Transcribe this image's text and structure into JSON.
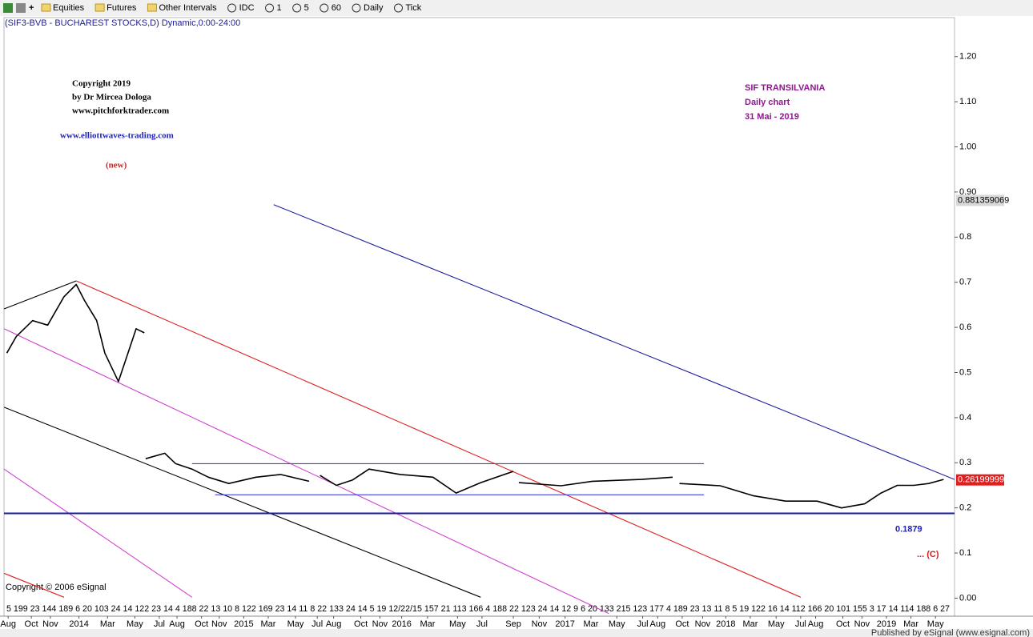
{
  "toolbar": {
    "items": [
      "Equities",
      "Futures",
      "Other Intervals",
      "IDC",
      "1",
      "5",
      "60",
      "Daily",
      "Tick"
    ]
  },
  "chart_data": {
    "type": "line",
    "header": "(SIF3-BVB - BUCHAREST STOCKS,D) Dynamic,0:00-24:00",
    "annotations": {
      "copyright": [
        "Copyright 2019",
        "by Dr Mircea Dologa",
        "www.pitchforktrader.com"
      ],
      "website": "www.elliottwaves-trading.com",
      "new": "(new)",
      "title": [
        "SIF TRANSILVANIA",
        "Daily chart",
        "31 Mai  -  2019"
      ],
      "wave": "... (C)",
      "esignal_copyright": "Copyright © 2006 eSignal",
      "footer": "Published by eSignal (www.esignal.com)"
    },
    "x": [
      0.2,
      0.9,
      2.1,
      3.2,
      4.4,
      5.3,
      5.9,
      6.8,
      7.4,
      8.4,
      9.1,
      9.7,
      10.3,
      10.35,
      10.4,
      11.8,
      12.6,
      13.8,
      15.0,
      16.5,
      18.5,
      20.3,
      22.4,
      22.8,
      23.2,
      24.4,
      25.6,
      26.8,
      29.1,
      31.5,
      33.2,
      35.0,
      37.4,
      37.6,
      37.8,
      40.9,
      43.2,
      46.8,
      49.1,
      49.3,
      49.6,
      52.6,
      55.0,
      57.4,
      59.7,
      61.5,
      63.2,
      64.4,
      65.6,
      66.8,
      67.9,
      69.0
    ],
    "series": [
      {
        "name": "SIF3-BVB",
        "color": "#000000",
        "values": [
          0.543,
          0.58,
          0.615,
          0.605,
          0.668,
          0.695,
          0.66,
          0.615,
          0.543,
          0.48,
          0.543,
          0.597,
          0.588,
          null,
          0.309,
          0.321,
          0.298,
          0.286,
          0.268,
          0.254,
          0.268,
          0.274,
          0.259,
          null,
          0.272,
          0.25,
          0.262,
          0.286,
          0.274,
          0.268,
          0.233,
          0.256,
          0.281,
          null,
          0.256,
          0.249,
          0.259,
          0.263,
          0.268,
          null,
          0.254,
          0.249,
          0.227,
          0.215,
          0.215,
          0.2,
          0.209,
          0.233,
          0.25,
          0.25,
          0.254,
          0.263
        ]
      }
    ],
    "trendlines": [
      {
        "color": "#000000",
        "x": [
          0,
          5.3
        ],
        "values": [
          0.641,
          0.703
        ]
      },
      {
        "color": "#e02020",
        "x": [
          5.3,
          58.5
        ],
        "values": [
          0.703,
          0.002
        ]
      },
      {
        "color": "#d040d0",
        "x": [
          0,
          44.4
        ],
        "values": [
          0.597,
          -0.034
        ]
      },
      {
        "color": "#2020a0",
        "x": [
          19.8,
          69.8
        ],
        "values": [
          0.872,
          0.263
        ]
      },
      {
        "color": "#000000",
        "x": [
          0,
          35.0
        ],
        "values": [
          0.423,
          0.002
        ]
      },
      {
        "color": "#d040d0",
        "x": [
          0,
          13.8
        ],
        "values": [
          0.286,
          0.002
        ]
      },
      {
        "color": "#e02020",
        "x": [
          0,
          4.4
        ],
        "values": [
          0.055,
          0.002
        ]
      },
      {
        "color": "#4040e0",
        "x": [
          13.8,
          51.4
        ],
        "values": [
          0.298,
          0.298
        ]
      },
      {
        "color": "#4040e0",
        "x": [
          15.5,
          51.4
        ],
        "values": [
          0.229,
          0.229
        ]
      }
    ],
    "support": {
      "value": 0.1879,
      "color": "#1a1aa0"
    },
    "price_labels": [
      {
        "value": 0.881359069,
        "color": "#d8d8d8"
      },
      {
        "value": 0.26199999,
        "color": "#e02020"
      }
    ],
    "xlim": [
      -0.3,
      69.8
    ],
    "ylim": [
      -0.04,
      1.29
    ],
    "yticks": [
      {
        "value": 1.2,
        "label": "1.20"
      },
      {
        "value": 1.1,
        "label": "1.10"
      },
      {
        "value": 1.0,
        "label": "1.00"
      },
      {
        "value": 0.9,
        "label": "0.90"
      },
      0.8,
      0.7,
      0.6,
      0.5,
      0.4,
      0.3,
      0.2,
      0.1,
      {
        "value": 0.0,
        "label": "0.00"
      }
    ],
    "x_day_labels": "5 199 23 144 189 6 20 103   24 14 122   23 14 4 188 22 13 10 8   122 169 23 14 11 8 22 133   24 14 5 19 12/22/15   157 21 113 166   4 188 22 123   24 14 12 9   6 20 133   215 123 177   4 189 23 13 11 8   5 19 122 16 14 112 166 20 101 155   3 17 14 114 188   6 27",
    "xticks": [
      {
        "value": 0.3,
        "label": "Aug"
      },
      {
        "value": 2.0,
        "label": "Oct"
      },
      {
        "value": 3.4,
        "label": "Nov"
      },
      {
        "value": 5.5,
        "label": "2014"
      },
      {
        "value": 7.6,
        "label": "Mar"
      },
      {
        "value": 9.6,
        "label": "May"
      },
      {
        "value": 11.4,
        "label": "Jul"
      },
      {
        "value": 12.7,
        "label": "Aug"
      },
      {
        "value": 14.5,
        "label": "Oct"
      },
      {
        "value": 15.8,
        "label": "Nov"
      },
      {
        "value": 17.6,
        "label": "2015"
      },
      {
        "value": 19.4,
        "label": "Mar"
      },
      {
        "value": 21.4,
        "label": "May"
      },
      {
        "value": 23.0,
        "label": "Jul"
      },
      {
        "value": 24.2,
        "label": "Aug"
      },
      {
        "value": 26.2,
        "label": "Oct"
      },
      {
        "value": 27.6,
        "label": "Nov"
      },
      {
        "value": 29.2,
        "label": "2016"
      },
      {
        "value": 31.1,
        "label": "Mar"
      },
      {
        "value": 33.3,
        "label": "May"
      },
      {
        "value": 35.1,
        "label": "Jul"
      },
      {
        "value": 37.4,
        "label": "Sep"
      },
      {
        "value": 39.3,
        "label": "Nov"
      },
      {
        "value": 41.2,
        "label": "2017"
      },
      {
        "value": 43.1,
        "label": "Mar"
      },
      {
        "value": 45.0,
        "label": "May"
      },
      {
        "value": 46.9,
        "label": "Jul"
      },
      {
        "value": 48.0,
        "label": "Aug"
      },
      {
        "value": 49.8,
        "label": "Oct"
      },
      {
        "value": 51.3,
        "label": "Nov"
      },
      {
        "value": 53.0,
        "label": "2018"
      },
      {
        "value": 54.8,
        "label": "Mar"
      },
      {
        "value": 56.7,
        "label": "May"
      },
      {
        "value": 58.5,
        "label": "Jul"
      },
      {
        "value": 59.6,
        "label": "Aug"
      },
      {
        "value": 61.6,
        "label": "Oct"
      },
      {
        "value": 63.0,
        "label": "Nov"
      },
      {
        "value": 64.8,
        "label": "2019"
      },
      {
        "value": 66.6,
        "label": "Mar"
      },
      {
        "value": 68.4,
        "label": "May"
      }
    ]
  }
}
